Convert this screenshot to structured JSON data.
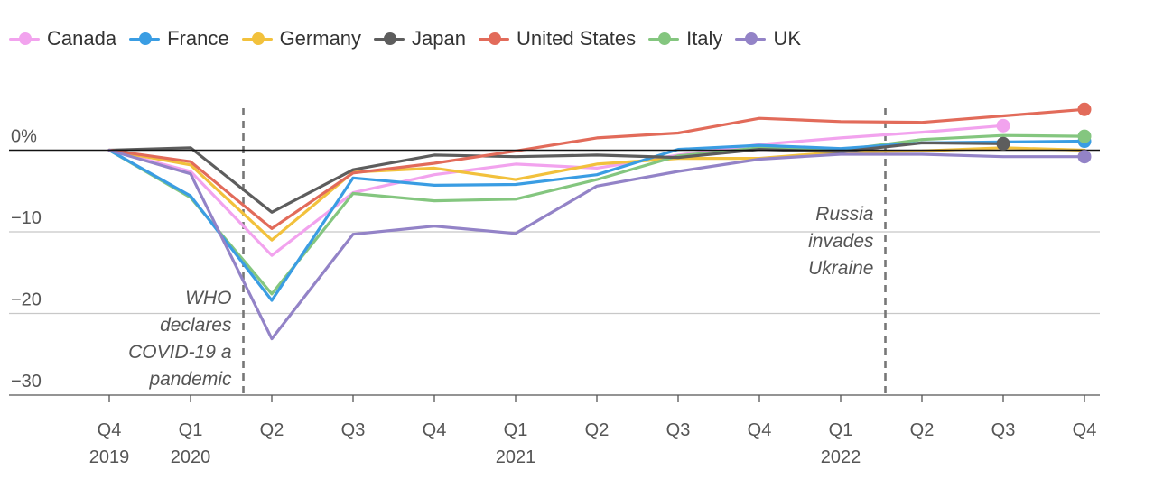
{
  "chart_data": {
    "type": "line",
    "categories": [
      "Q4 2019",
      "Q1 2020",
      "Q2 2020",
      "Q3 2020",
      "Q4 2020",
      "Q1 2021",
      "Q2 2021",
      "Q3 2021",
      "Q4 2021",
      "Q1 2022",
      "Q2 2022",
      "Q3 2022",
      "Q4 2022"
    ],
    "x_tick_quarters": [
      "Q4",
      "Q1",
      "Q2",
      "Q3",
      "Q4",
      "Q1",
      "Q2",
      "Q3",
      "Q4",
      "Q1",
      "Q2",
      "Q3",
      "Q4"
    ],
    "x_tick_years": [
      {
        "label": "2019",
        "index": 0
      },
      {
        "label": "2020",
        "index": 1
      },
      {
        "label": "2021",
        "index": 5
      },
      {
        "label": "2022",
        "index": 9
      }
    ],
    "y_ticks": [
      {
        "value": 0,
        "label": "0%"
      },
      {
        "value": -10,
        "label": "−10"
      },
      {
        "value": -20,
        "label": "−20"
      },
      {
        "value": -30,
        "label": "−30"
      }
    ],
    "ylim": [
      -30,
      5
    ],
    "series": [
      {
        "name": "Canada",
        "color": "#f2a3ee",
        "values": [
          0,
          -2.6,
          -12.9,
          -5.2,
          -3.0,
          -1.7,
          -2.2,
          -0.6,
          0.7,
          1.5,
          2.2,
          3.0,
          null
        ]
      },
      {
        "name": "France",
        "color": "#3a9de3",
        "values": [
          0,
          -5.6,
          -18.4,
          -3.4,
          -4.3,
          -4.2,
          -3.0,
          0.1,
          0.6,
          0.2,
          0.9,
          1.0,
          1.1
        ]
      },
      {
        "name": "Germany",
        "color": "#f2c13c",
        "values": [
          0,
          -1.8,
          -11.0,
          -2.7,
          -2.2,
          -3.6,
          -1.7,
          -1.0,
          -1.0,
          -0.2,
          -0.1,
          0.3,
          0.0
        ]
      },
      {
        "name": "Japan",
        "color": "#5d5d5d",
        "values": [
          0,
          0.3,
          -7.6,
          -2.4,
          -0.6,
          -0.8,
          -0.6,
          -0.9,
          0.1,
          -0.2,
          0.9,
          0.8,
          null
        ]
      },
      {
        "name": "United States",
        "color": "#e26b5a",
        "values": [
          0,
          -1.4,
          -9.6,
          -2.8,
          -1.6,
          -0.1,
          1.5,
          2.1,
          3.9,
          3.5,
          3.4,
          4.2,
          5.0
        ]
      },
      {
        "name": "Italy",
        "color": "#84c67f",
        "values": [
          0,
          -5.8,
          -17.6,
          -5.3,
          -6.2,
          -6.0,
          -3.6,
          -0.7,
          0.3,
          0.0,
          1.3,
          1.8,
          1.7
        ]
      },
      {
        "name": "UK",
        "color": "#9383c7",
        "values": [
          0,
          -2.9,
          -23.1,
          -10.3,
          -9.3,
          -10.2,
          -4.4,
          -2.6,
          -1.1,
          -0.5,
          -0.5,
          -0.8,
          -0.8
        ]
      }
    ],
    "end_markers": [
      {
        "series": "Canada",
        "index": 11
      },
      {
        "series": "France",
        "index": 12
      },
      {
        "series": "Japan",
        "index": 11
      },
      {
        "series": "United States",
        "index": 12
      },
      {
        "series": "Italy",
        "index": 12
      },
      {
        "series": "UK",
        "index": 12
      }
    ],
    "annotations": [
      {
        "name": "who-pandemic",
        "x_position": 1.65,
        "lines": [
          "WHO",
          "declares",
          "COVID-19 a",
          "pandemic"
        ]
      },
      {
        "name": "russia-invades",
        "x_position": 9.55,
        "lines": [
          "Russia",
          "invades",
          "Ukraine"
        ]
      }
    ]
  }
}
